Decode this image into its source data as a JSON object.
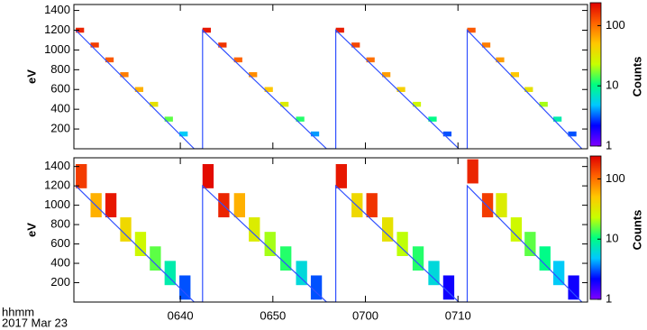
{
  "chart_data": [
    {
      "type": "spectrogram",
      "ylabel": "eV",
      "xlim": [
        388.5,
        444
      ],
      "ylim": [
        0,
        1460
      ],
      "yticks": [
        200,
        400,
        600,
        800,
        1000,
        1200,
        1400
      ],
      "bin_size": [
        0.9,
        50
      ],
      "cells": {
        "x": [
          388.7,
          390.3,
          391.9,
          393.5,
          395.1,
          396.7,
          398.3,
          399.9,
          402.4,
          404.1,
          405.8,
          407.4,
          409.1,
          410.8,
          412.5,
          414.1,
          416.8,
          418.5,
          420.1,
          421.8,
          423.4,
          425.1,
          426.8,
          428.4,
          431.0,
          432.6,
          434.1,
          435.7,
          437.2,
          438.8,
          440.3,
          441.9
        ],
        "y": [
          1200,
          1050,
          900,
          750,
          600,
          450,
          300,
          150,
          1200,
          1050,
          900,
          750,
          600,
          450,
          300,
          150,
          1200,
          1050,
          900,
          750,
          600,
          450,
          300,
          150,
          1200,
          1050,
          900,
          750,
          600,
          450,
          300,
          150
        ],
        "counts": [
          180,
          150,
          120,
          90,
          60,
          35,
          15,
          5,
          200,
          160,
          110,
          80,
          50,
          30,
          12,
          4,
          190,
          140,
          100,
          70,
          45,
          25,
          10,
          3,
          120,
          90,
          70,
          50,
          35,
          20,
          8,
          3
        ]
      },
      "trace": {
        "color": "#3050ff",
        "x": [
          388.7,
          401.5,
          402.4,
          402.4,
          415.8,
          416.8,
          416.8,
          430.1,
          431.0,
          431.0,
          443.4
        ],
        "values": [
          1200,
          0,
          0,
          1200,
          0,
          0,
          1200,
          0,
          0,
          1200,
          0
        ]
      },
      "colorbar": {
        "label": "Counts",
        "log": true,
        "zlim": [
          1,
          240
        ],
        "zticks": [
          1,
          10,
          100
        ],
        "colormap": [
          "#7f00ff",
          "#0000ff",
          "#00c8ff",
          "#00ff80",
          "#c8ff00",
          "#ffc800",
          "#ff6400",
          "#e00000"
        ]
      }
    },
    {
      "type": "spectrogram",
      "ylabel": "eV",
      "xlabel": "hhmm",
      "date": "2017 Mar 23",
      "xlim": [
        388.5,
        444
      ],
      "ylim": [
        0,
        1490
      ],
      "xticks": [
        {
          "value": 400,
          "label": "0640"
        },
        {
          "value": 410,
          "label": "0650"
        },
        {
          "value": 420,
          "label": "0700"
        },
        {
          "value": 430,
          "label": "0710"
        }
      ],
      "yticks": [
        200,
        400,
        600,
        800,
        1000,
        1200,
        1400
      ],
      "bin_size": [
        1.2,
        250
      ],
      "cells": {
        "x": [
          388.7,
          390.3,
          391.9,
          393.5,
          395.1,
          396.7,
          398.3,
          399.9,
          402.4,
          404.1,
          405.8,
          407.4,
          409.1,
          410.8,
          412.5,
          414.1,
          416.8,
          418.5,
          420.1,
          421.8,
          423.4,
          425.1,
          426.8,
          428.4,
          431.0,
          432.6,
          434.1,
          435.7,
          437.2,
          438.8,
          440.3,
          441.9
        ],
        "y": [
          1300,
          1000,
          1000,
          750,
          600,
          450,
          300,
          150,
          1300,
          1000,
          1000,
          750,
          600,
          450,
          300,
          150,
          1300,
          1000,
          1000,
          750,
          600,
          450,
          300,
          150,
          1350,
          1000,
          1000,
          750,
          600,
          450,
          300,
          150
        ],
        "counts": [
          150,
          60,
          200,
          40,
          25,
          15,
          8,
          3,
          220,
          180,
          60,
          30,
          20,
          12,
          6,
          3,
          200,
          40,
          160,
          35,
          22,
          12,
          6,
          2,
          180,
          150,
          30,
          25,
          15,
          10,
          5,
          2
        ]
      },
      "trace": {
        "color": "#3050ff",
        "x": [
          388.7,
          401.5,
          402.4,
          402.4,
          415.8,
          416.8,
          416.8,
          430.1,
          431.0,
          431.0,
          443.4
        ],
        "values": [
          1200,
          0,
          0,
          1200,
          0,
          0,
          1200,
          0,
          0,
          1200,
          0
        ]
      },
      "colorbar": {
        "label": "Counts",
        "log": true,
        "zlim": [
          1,
          240
        ],
        "zticks": [
          1,
          10,
          100
        ],
        "colormap": [
          "#7f00ff",
          "#0000ff",
          "#00c8ff",
          "#00ff80",
          "#c8ff00",
          "#ffc800",
          "#ff6400",
          "#e00000"
        ]
      }
    }
  ]
}
